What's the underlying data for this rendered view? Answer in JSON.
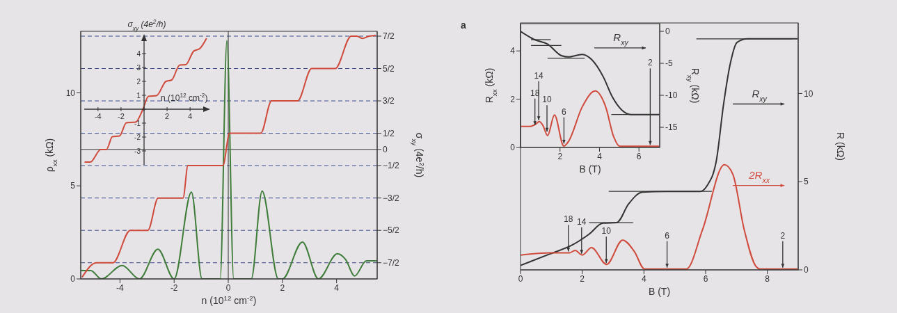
{
  "chart_data": [
    {
      "type": "line",
      "xlabel": "n (10$^{12}$ cm$^{-2}$)",
      "ylabel": "ρ$_{xx}$ (kΩ)",
      "y2label": "σ$_{xy}$ (4e$^{2}$/h)",
      "xlim": [
        -5.45,
        5.5
      ],
      "xticks": [
        -4,
        -2,
        0,
        2,
        4
      ],
      "ylim": [
        0,
        13.3
      ],
      "yticks": [
        0,
        5,
        10
      ],
      "y2lim": [
        -4,
        3.65
      ],
      "y2ticks": [
        {
          "value": 3.5,
          "label": "7/2"
        },
        {
          "value": 2.5,
          "label": "5/2"
        },
        {
          "value": 1.5,
          "label": "3/2"
        },
        {
          "value": 0.5,
          "label": "1/2"
        },
        0,
        {
          "value": -0.5,
          "label": "−1/2"
        },
        {
          "value": -1.5,
          "label": "−3/2"
        },
        {
          "value": -2.5,
          "label": "−5/2"
        },
        {
          "value": -3.5,
          "label": "−7/2"
        }
      ],
      "series": [
        {
          "color": "#3f7d3a",
          "x": [
            -5.44,
            -5.08,
            -4.69,
            -3.92,
            -3.28,
            -2.6,
            -2.0,
            -1.36,
            -0.97,
            -0.5,
            -0.3,
            -0.05,
            0.2,
            0.5,
            0.85,
            1.25,
            1.85,
            2.0,
            2.74,
            3.33,
            4.03,
            4.33,
            4.67,
            5.1,
            5.49
          ],
          "values": [
            0.45,
            0.45,
            0,
            0.72,
            0,
            1.6,
            0,
            4.66,
            0,
            0,
            0,
            12.8,
            0,
            0,
            0,
            4.72,
            0,
            0,
            1.98,
            0,
            1.35,
            1.05,
            0.16,
            0.97,
            0.97
          ]
        },
        {
          "color": "#d04a3c",
          "axis": "y2",
          "x": [
            -5.4,
            -4.87,
            -4.26,
            -3.62,
            -2.97,
            -2.59,
            -1.67,
            -1.49,
            -0.2,
            0.05,
            1.2,
            1.6,
            2.56,
            3.08,
            3.95,
            4.54,
            4.75,
            4.95,
            5.2,
            5.45
          ],
          "values": [
            -3.95,
            -3.5,
            -3.5,
            -2.5,
            -2.5,
            -1.5,
            -1.5,
            -0.5,
            -0.5,
            0.5,
            0.5,
            1.5,
            1.5,
            2.5,
            2.5,
            3.5,
            3.5,
            3.43,
            3.5,
            3.52
          ]
        }
      ],
      "ref_lines": [
        {
          "axis": "y2",
          "value": 3.5,
          "line_style": "dashed",
          "color": "#3b4a8a"
        },
        {
          "axis": "y2",
          "value": 2.5,
          "line_style": "dashed",
          "color": "#3b4a8a"
        },
        {
          "axis": "y2",
          "value": 1.5,
          "line_style": "dashed",
          "color": "#3b4a8a"
        },
        {
          "axis": "y2",
          "value": 0.5,
          "line_style": "dashed",
          "color": "#3b4a8a"
        },
        {
          "axis": "y2",
          "value": 0,
          "line_style": "solid",
          "color": "#333333"
        },
        {
          "axis": "y2",
          "value": -0.5,
          "line_style": "dashed",
          "color": "#3b4a8a"
        },
        {
          "axis": "y2",
          "value": -1.5,
          "line_style": "dashed",
          "color": "#3b4a8a"
        },
        {
          "axis": "y2",
          "value": -2.5,
          "line_style": "dashed",
          "color": "#3b4a8a"
        },
        {
          "axis": "y2",
          "value": -3.5,
          "line_style": "dashed",
          "color": "#3b4a8a"
        },
        {
          "axis": "x",
          "value": 0,
          "line_style": "solid",
          "color": "#333333"
        }
      ]
    },
    {
      "type": "line",
      "xlabel": "n (10$^{12}$ cm$^{-2}$)",
      "ylabel": "σ$_{xy}$ (4e$^{2}$/h)",
      "xlim": [
        -5.2,
        5.5
      ],
      "xticks": [
        -4,
        -2,
        {
          "value": 0,
          "label": null
        },
        2,
        4
      ],
      "ylim": [
        -4,
        5.2
      ],
      "yticks": [
        -3,
        -2,
        -1,
        {
          "value": 0,
          "label": null
        },
        1,
        2,
        3,
        4
      ],
      "series": [
        {
          "color": "#d04a3c",
          "x": [
            -5.17,
            -4.67,
            -3.76,
            -3.27,
            -2.75,
            -2.14,
            -1.53,
            -0.73,
            -0.12,
            0.38,
            1.09,
            1.9,
            2.4,
            3.1,
            3.62,
            4.32,
            4.83,
            5.43
          ],
          "values": [
            -3.8,
            -3.8,
            -2.9,
            -2.9,
            -1.98,
            -1.93,
            -0.98,
            -0.93,
            -0.05,
            0.93,
            0.98,
            2.0,
            2.1,
            3.18,
            3.2,
            4.18,
            4.35,
            5.1
          ]
        }
      ]
    },
    {
      "type": "line",
      "xlabel": "B (T)",
      "ylabel": "R (kΩ)",
      "xlim": [
        0,
        9
      ],
      "xticks": [
        0,
        2,
        4,
        6,
        8
      ],
      "ylim": [
        0,
        14
      ],
      "yticks": [
        0,
        5,
        10
      ],
      "series": [
        {
          "name": "R$_{xy}$",
          "color": "#333333",
          "x": [
            0,
            0.95,
            1.7,
            2.22,
            2.67,
            3.12,
            3.5,
            3.95,
            4.7,
            5.83,
            6.05,
            6.35,
            6.58,
            6.8,
            7.02,
            7.36,
            8.98
          ],
          "values": [
            0.25,
            0.9,
            1.43,
            2.02,
            2.65,
            2.68,
            3.73,
            4.41,
            4.45,
            4.45,
            4.78,
            6.22,
            9.37,
            11.7,
            12.9,
            13.1,
            13.1
          ]
        },
        {
          "name": "2R$_{xx}$",
          "color": "#d04a3c",
          "x": [
            0,
            0.95,
            1.59,
            1.77,
            2.0,
            2.3,
            2.79,
            3.31,
            3.69,
            4.02,
            5.38,
            5.9,
            6.61,
            6.88,
            7.25,
            7.63,
            7.77,
            8.98
          ],
          "values": [
            0.84,
            0.97,
            0.97,
            1.1,
            0.84,
            1.26,
            0.31,
            1.69,
            1.04,
            0.05,
            0.05,
            2.28,
            5.96,
            5.43,
            2.28,
            0.2,
            0.05,
            0.05
          ]
        },
        {
          "color": "#333333",
          "x": [
            2.22,
            3.65
          ],
          "values": [
            2.68,
            2.68
          ]
        },
        {
          "color": "#333333",
          "x": [
            2.86,
            6.2
          ],
          "values": [
            4.45,
            4.45
          ]
        },
        {
          "color": "#333333",
          "x": [
            5.7,
            8.8
          ],
          "values": [
            13.1,
            13.1
          ]
        }
      ],
      "annotations": [
        "a",
        {
          "text": "18",
          "x": 1.55,
          "y": 0.97
        },
        {
          "text": "14",
          "x": 1.98,
          "y": 0.84
        },
        {
          "text": "10",
          "x": 2.78,
          "y": 0.31
        },
        {
          "text": "6",
          "x": 4.75,
          "y": 0.05
        },
        {
          "text": "2",
          "x": 8.5,
          "y": 0.05
        }
      ]
    },
    {
      "type": "line",
      "xlabel": "B (T)",
      "ylabel": "R$_{xx}$ (kΩ)",
      "y2label": "R$_{xy}$ (kΩ)",
      "xlim": [
        0,
        7.05
      ],
      "xticks": [
        2,
        4,
        6
      ],
      "ylim": [
        0,
        5.13
      ],
      "yticks": [
        0,
        2,
        4
      ],
      "y2lim": [
        -18.15,
        1.2
      ],
      "y2ticks": [
        -15,
        -10,
        -5,
        0
      ],
      "series": [
        {
          "name": "R$_{xy}$",
          "color": "#333333",
          "axis": "y2",
          "x": [
            0,
            0.71,
            1.37,
            2.07,
            2.43,
            3.13,
            3.6,
            4.19,
            4.66,
            5.13,
            5.6,
            7.02
          ],
          "values": [
            0,
            -1.3,
            -2,
            -3.8,
            -4,
            -3.6,
            -4.4,
            -7.1,
            -10.3,
            -12.3,
            -13,
            -13
          ]
        },
        {
          "color": "#d04a3c",
          "x": [
            0,
            0.48,
            0.78,
            0.95,
            1.13,
            1.37,
            1.72,
            2.19,
            2.43,
            3.13,
            3.78,
            4.31,
            4.72,
            5.02,
            7.02
          ],
          "values": [
            0.87,
            0.87,
            0.97,
            1.07,
            0.92,
            0.49,
            1.35,
            0.06,
            0.25,
            1.69,
            2.34,
            1.69,
            0.44,
            0.05,
            0.05
          ]
        },
        {
          "color": "#333333",
          "axis": "y2",
          "x": [
            0.53,
            1.53
          ],
          "values": [
            -1.3,
            -1.3
          ]
        },
        {
          "color": "#333333",
          "axis": "y2",
          "x": [
            0.53,
            2.07
          ],
          "values": [
            -2.2,
            -2.2
          ]
        },
        {
          "color": "#333333",
          "axis": "y2",
          "x": [
            1.37,
            3.25
          ],
          "values": [
            -4.2,
            -4.2
          ]
        },
        {
          "color": "#333333",
          "axis": "y2",
          "x": [
            4.6,
            7.05
          ],
          "values": [
            -13,
            -13
          ]
        }
      ],
      "annotations": [
        {
          "text": "18",
          "x": 0.73,
          "y": 0.87
        },
        {
          "text": "14",
          "x": 0.92,
          "y": 1.07
        },
        {
          "text": "10",
          "x": 1.34,
          "y": 0.6
        },
        {
          "text": "6",
          "x": 2.2,
          "y": 0.1
        },
        {
          "text": "2",
          "x": 6.57,
          "y": 0.05
        }
      ]
    }
  ]
}
